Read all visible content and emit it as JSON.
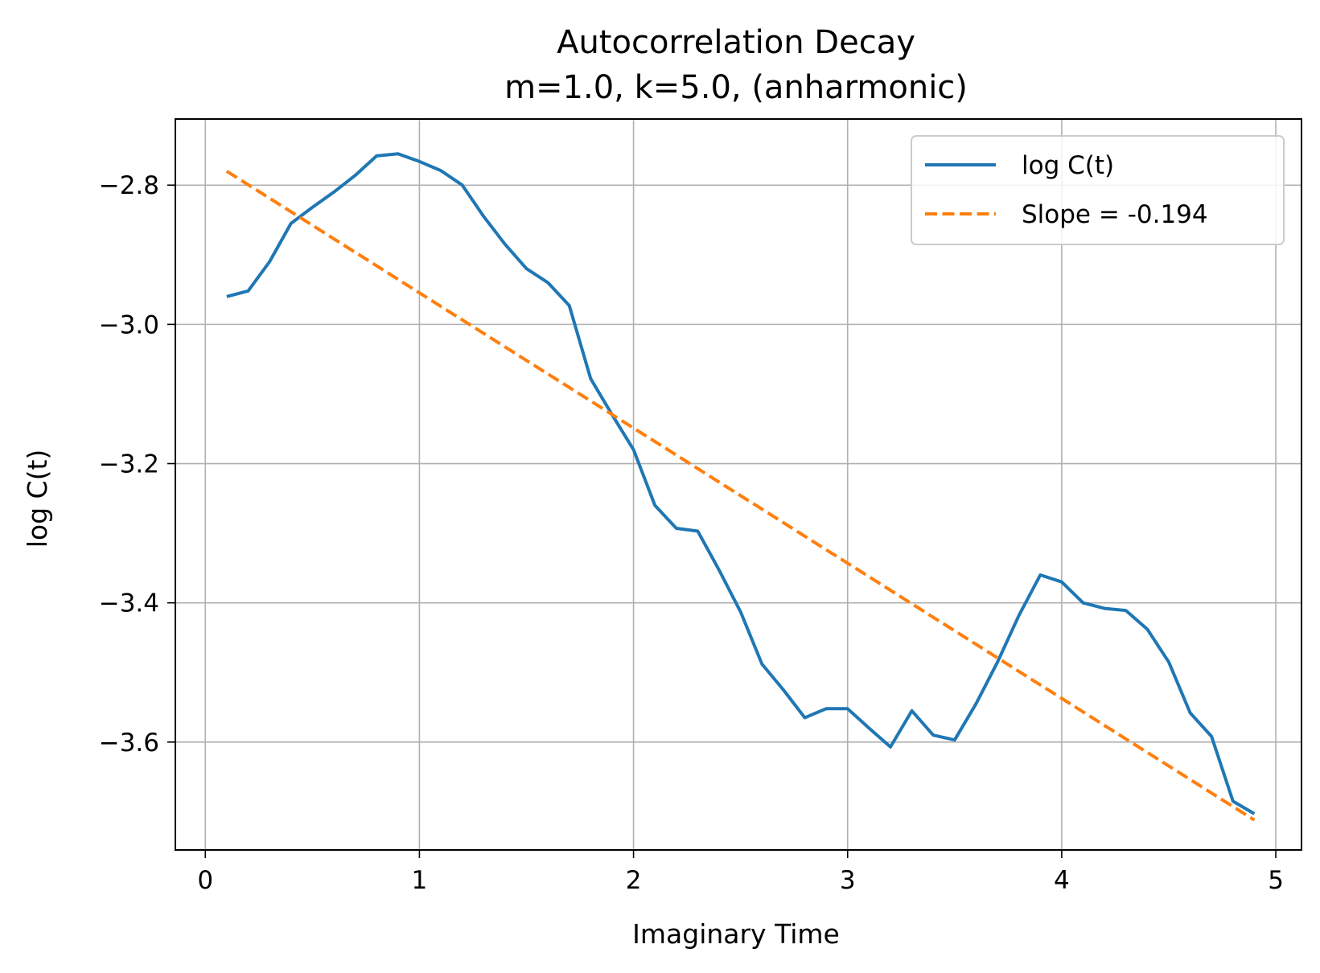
{
  "chart_data": {
    "type": "line",
    "title": "Autocorrelation Decay",
    "subtitle": "m=1.0, k=5.0, (anharmonic)",
    "xlabel": "Imaginary Time",
    "ylabel": "log C(t)",
    "xlim": [
      -0.14,
      5.12
    ],
    "ylim": [
      -3.755,
      -2.705
    ],
    "xticks": [
      0,
      1,
      2,
      3,
      4,
      5
    ],
    "xtick_labels": [
      "0",
      "1",
      "2",
      "3",
      "4",
      "5"
    ],
    "yticks": [
      -2.8,
      -3.0,
      -3.2,
      -3.4,
      -3.6
    ],
    "ytick_labels": [
      "−2.8",
      "−3.0",
      "−3.2",
      "−3.4",
      "−3.6"
    ],
    "grid": true,
    "legend_position": "upper right",
    "series": [
      {
        "name": "log C(t)",
        "color": "#1f77b4",
        "style": "solid",
        "x": [
          0.1,
          0.2,
          0.3,
          0.4,
          0.5,
          0.6,
          0.7,
          0.8,
          0.9,
          1.0,
          1.1,
          1.2,
          1.3,
          1.4,
          1.5,
          1.6,
          1.7,
          1.8,
          1.9,
          2.0,
          2.1,
          2.2,
          2.3,
          2.4,
          2.5,
          2.6,
          2.7,
          2.8,
          2.9,
          3.0,
          3.1,
          3.2,
          3.3,
          3.4,
          3.5,
          3.6,
          3.7,
          3.8,
          3.9,
          4.0,
          4.1,
          4.2,
          4.3,
          4.4,
          4.5,
          4.6,
          4.7,
          4.8,
          4.9
        ],
        "y": [
          -2.96,
          -2.952,
          -2.91,
          -2.855,
          -2.832,
          -2.81,
          -2.786,
          -2.758,
          -2.755,
          -2.766,
          -2.779,
          -2.8,
          -2.845,
          -2.885,
          -2.92,
          -2.94,
          -2.973,
          -3.078,
          -3.13,
          -3.18,
          -3.26,
          -3.293,
          -3.297,
          -3.353,
          -3.413,
          -3.488,
          -3.525,
          -3.565,
          -3.552,
          -3.552,
          -3.58,
          -3.607,
          -3.555,
          -3.59,
          -3.597,
          -3.545,
          -3.485,
          -3.418,
          -3.36,
          -3.37,
          -3.4,
          -3.408,
          -3.411,
          -3.438,
          -3.485,
          -3.558,
          -3.592,
          -3.685,
          -3.703
        ]
      },
      {
        "name": "Slope = -0.194",
        "color": "#ff7f0e",
        "style": "dashed",
        "x": [
          0.1,
          4.9
        ],
        "y": [
          -2.78,
          -3.712
        ]
      }
    ]
  }
}
